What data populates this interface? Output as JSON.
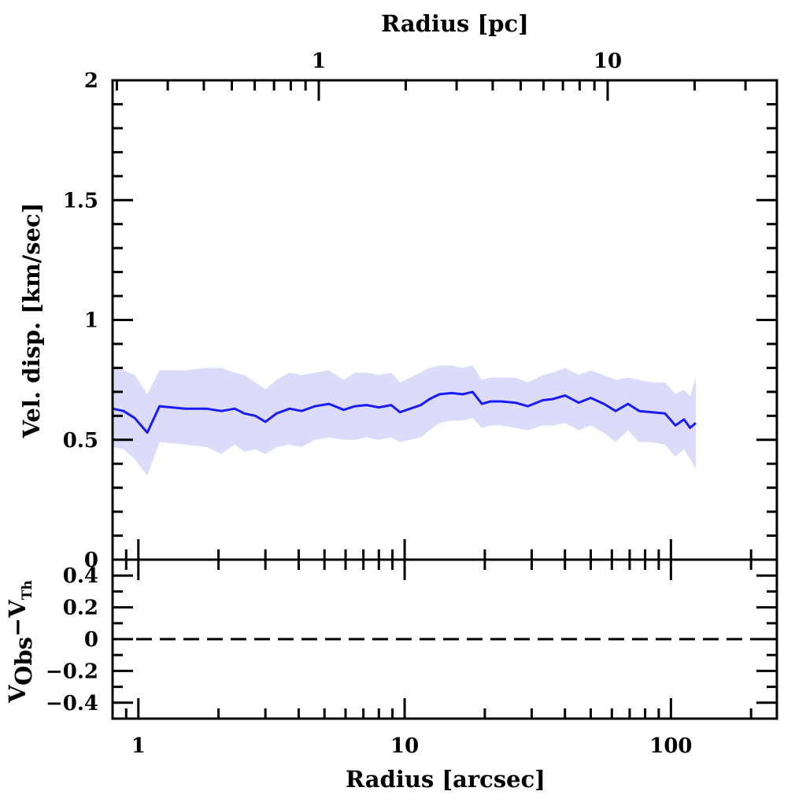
{
  "chart_data": {
    "type": "line",
    "top_panel": {
      "xlabel": "Radius [arcsec]",
      "xlabel_top": "Radius [pc]",
      "ylabel": "Vel. disp. [km/sec]",
      "xscale": "log",
      "xlim": [
        0.8,
        250
      ],
      "ylim": [
        0,
        2
      ],
      "x_tick_labels": [
        "1",
        "10",
        "100"
      ],
      "x_tick_values": [
        1,
        10,
        100
      ],
      "top_tick_labels": [
        "1",
        "10"
      ],
      "y_tick_labels": [
        "0",
        "0.5",
        "1",
        "1.5",
        "2"
      ],
      "y_tick_values": [
        0,
        0.5,
        1,
        1.5,
        2
      ],
      "series": [
        {
          "color": "#1a1aff",
          "band_color": "#dcdcfa",
          "x": [
            0.8,
            0.88,
            0.97,
            1.08,
            1.2,
            1.5,
            1.8,
            2.05,
            2.3,
            2.5,
            2.75,
            3.0,
            3.3,
            3.7,
            4.1,
            4.6,
            5.2,
            5.9,
            6.5,
            7.2,
            8.0,
            8.9,
            9.6,
            10.5,
            11.5,
            12.4,
            13.5,
            15.0,
            16.5,
            18.0,
            19.5,
            21.0,
            23.0,
            26.0,
            29.0,
            33.0,
            36.0,
            40.0,
            45.0,
            50.0,
            56.0,
            62.0,
            69.0,
            76.0,
            85.0,
            95.0,
            104.0,
            112.0,
            118.0,
            124.0
          ],
          "y": [
            0.63,
            0.62,
            0.59,
            0.53,
            0.64,
            0.63,
            0.63,
            0.62,
            0.63,
            0.61,
            0.6,
            0.575,
            0.61,
            0.63,
            0.62,
            0.64,
            0.65,
            0.625,
            0.64,
            0.645,
            0.635,
            0.645,
            0.615,
            0.63,
            0.645,
            0.67,
            0.69,
            0.695,
            0.69,
            0.7,
            0.65,
            0.66,
            0.66,
            0.655,
            0.64,
            0.665,
            0.67,
            0.685,
            0.655,
            0.675,
            0.65,
            0.62,
            0.65,
            0.62,
            0.615,
            0.61,
            0.56,
            0.585,
            0.55,
            0.57
          ],
          "y_upper": [
            0.8,
            0.79,
            0.77,
            0.69,
            0.79,
            0.79,
            0.8,
            0.8,
            0.78,
            0.77,
            0.74,
            0.71,
            0.75,
            0.78,
            0.77,
            0.78,
            0.79,
            0.75,
            0.78,
            0.78,
            0.77,
            0.78,
            0.74,
            0.76,
            0.78,
            0.8,
            0.81,
            0.81,
            0.8,
            0.81,
            0.75,
            0.76,
            0.76,
            0.76,
            0.74,
            0.77,
            0.78,
            0.8,
            0.77,
            0.79,
            0.77,
            0.75,
            0.76,
            0.75,
            0.74,
            0.74,
            0.69,
            0.71,
            0.68,
            0.76
          ],
          "y_lower": [
            0.47,
            0.46,
            0.42,
            0.35,
            0.49,
            0.48,
            0.47,
            0.44,
            0.48,
            0.45,
            0.46,
            0.44,
            0.47,
            0.48,
            0.47,
            0.5,
            0.51,
            0.5,
            0.5,
            0.51,
            0.5,
            0.51,
            0.49,
            0.5,
            0.51,
            0.54,
            0.57,
            0.58,
            0.58,
            0.59,
            0.55,
            0.56,
            0.56,
            0.55,
            0.54,
            0.56,
            0.56,
            0.57,
            0.54,
            0.56,
            0.53,
            0.49,
            0.54,
            0.49,
            0.49,
            0.48,
            0.43,
            0.46,
            0.42,
            0.38
          ]
        }
      ]
    },
    "bottom_panel": {
      "ylabel_main": "V",
      "ylabel_sub1": "Obs",
      "ylabel_minus": "−",
      "ylabel_main2": "V",
      "ylabel_sub2": "Th",
      "ylim": [
        -0.5,
        0.5
      ],
      "y_tick_labels": [
        "0.4",
        "0.2",
        "0",
        "−0.2",
        "−0.4"
      ],
      "y_tick_values": [
        0.4,
        0.2,
        0,
        -0.2,
        -0.4
      ],
      "reference_line": 0
    }
  }
}
